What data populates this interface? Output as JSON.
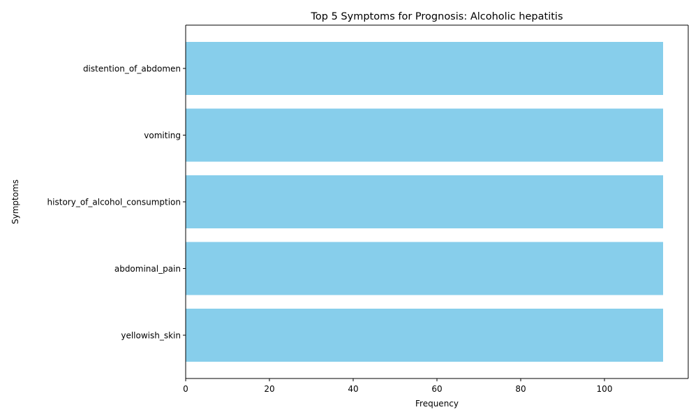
{
  "chart_data": {
    "type": "bar",
    "orientation": "horizontal",
    "title": "Top 5 Symptoms for Prognosis: Alcoholic hepatitis",
    "xlabel": "Frequency",
    "ylabel": "Symptoms",
    "categories": [
      "distention_of_abdomen",
      "vomiting",
      "history_of_alcohol_consumption",
      "abdominal_pain",
      "yellowish_skin"
    ],
    "values": [
      114,
      114,
      114,
      114,
      114
    ],
    "xlim": [
      0,
      120
    ],
    "xticks": [
      0,
      20,
      40,
      60,
      80,
      100
    ],
    "xtick_labels": [
      "0",
      "20",
      "40",
      "60",
      "80",
      "100"
    ],
    "bar_color": "#87CEEB",
    "grid": false,
    "legend": "none"
  }
}
